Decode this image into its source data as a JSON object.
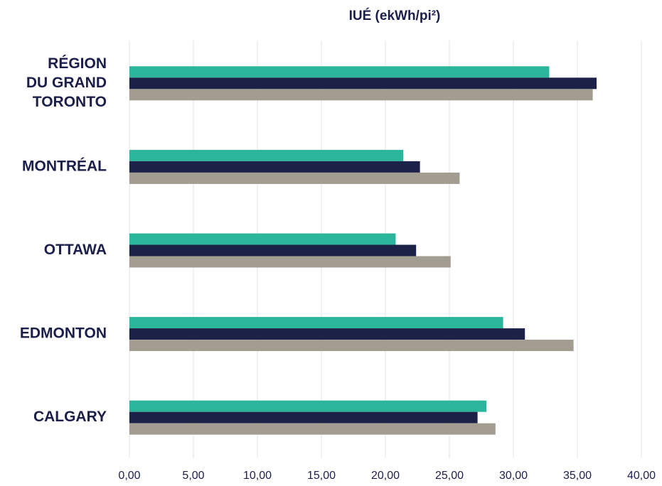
{
  "chart_data": {
    "type": "bar",
    "orientation": "horizontal",
    "title": "IUÉ (ekWh/pi²)",
    "xlabel": "",
    "ylabel": "",
    "categories": [
      [
        "RÉGION",
        "DU GRAND",
        "TORONTO"
      ],
      [
        "MONTRÉAL"
      ],
      [
        "OTTAWA"
      ],
      [
        "EDMONTON"
      ],
      [
        "CALGARY"
      ]
    ],
    "series": [
      {
        "values": [
          32.8,
          21.4,
          20.8,
          29.2,
          27.9
        ],
        "color": "#2bb59b"
      },
      {
        "values": [
          36.5,
          22.7,
          22.4,
          30.9,
          27.2
        ],
        "color": "#1b2147"
      },
      {
        "values": [
          36.2,
          25.8,
          25.1,
          34.7,
          28.6
        ],
        "color": "#a29d90"
      }
    ],
    "xlim": [
      0,
      40
    ],
    "xticks": [
      "0,00",
      "5,00",
      "10,00",
      "15,00",
      "20,00",
      "25,00",
      "30,00",
      "35,00",
      "40,00"
    ],
    "grid": true,
    "legend": "none"
  }
}
